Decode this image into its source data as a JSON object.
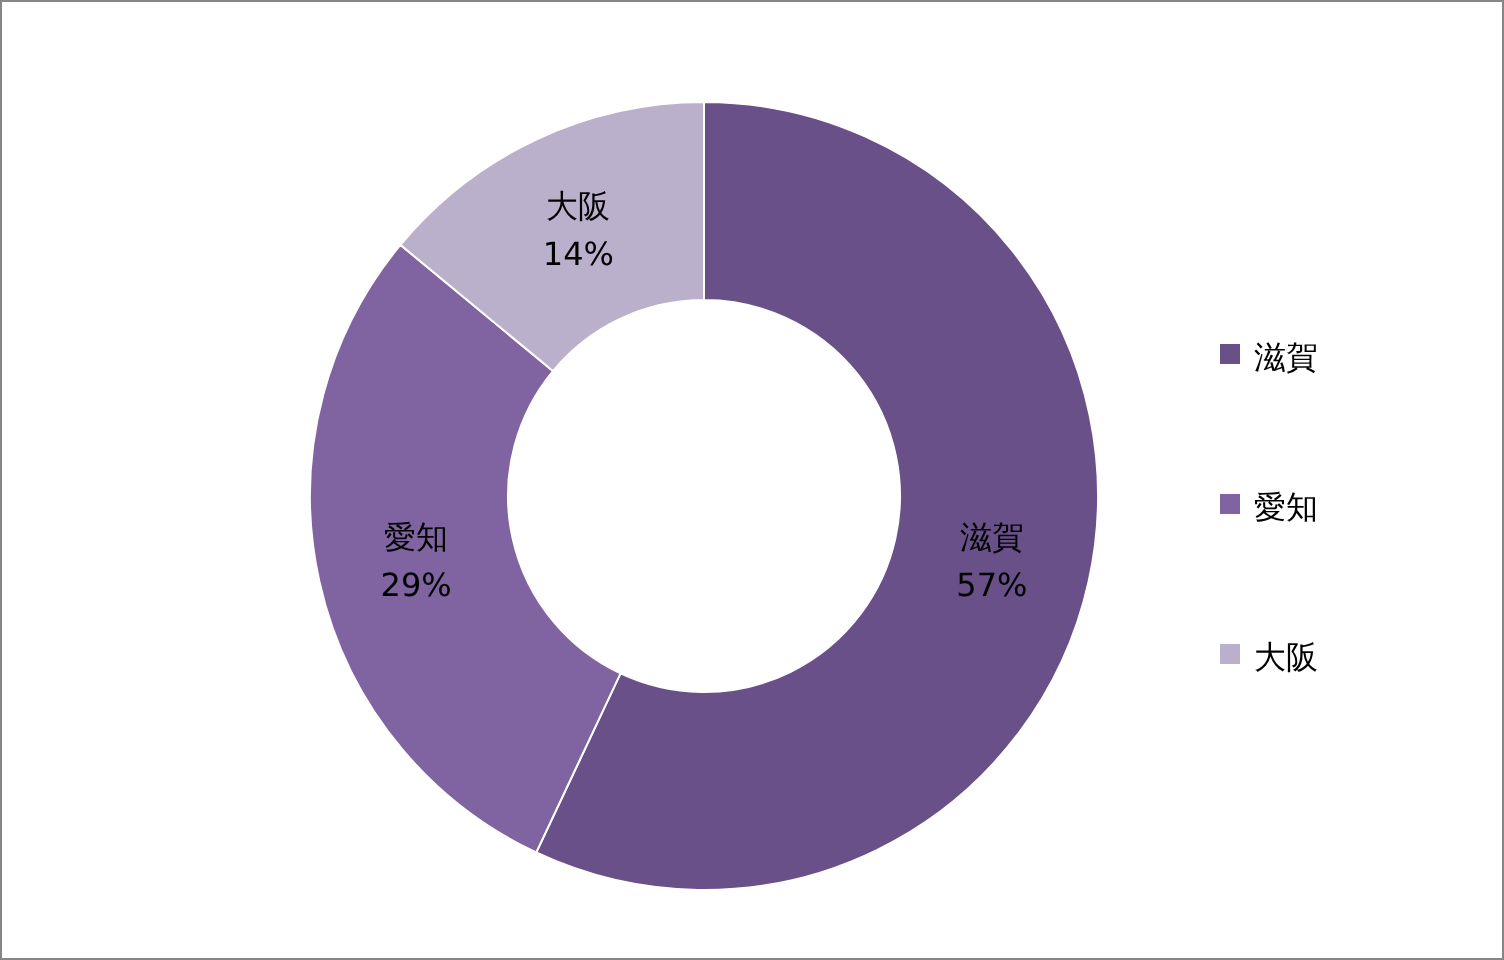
{
  "chart_data": {
    "type": "donut",
    "categories": [
      "滋賀",
      "愛知",
      "大阪"
    ],
    "values": [
      57,
      29,
      14
    ],
    "colors": [
      "#6a5089",
      "#8064a2",
      "#bab0cc"
    ],
    "value_labels": [
      "57%",
      "29%",
      "14%"
    ],
    "legend": "right"
  }
}
